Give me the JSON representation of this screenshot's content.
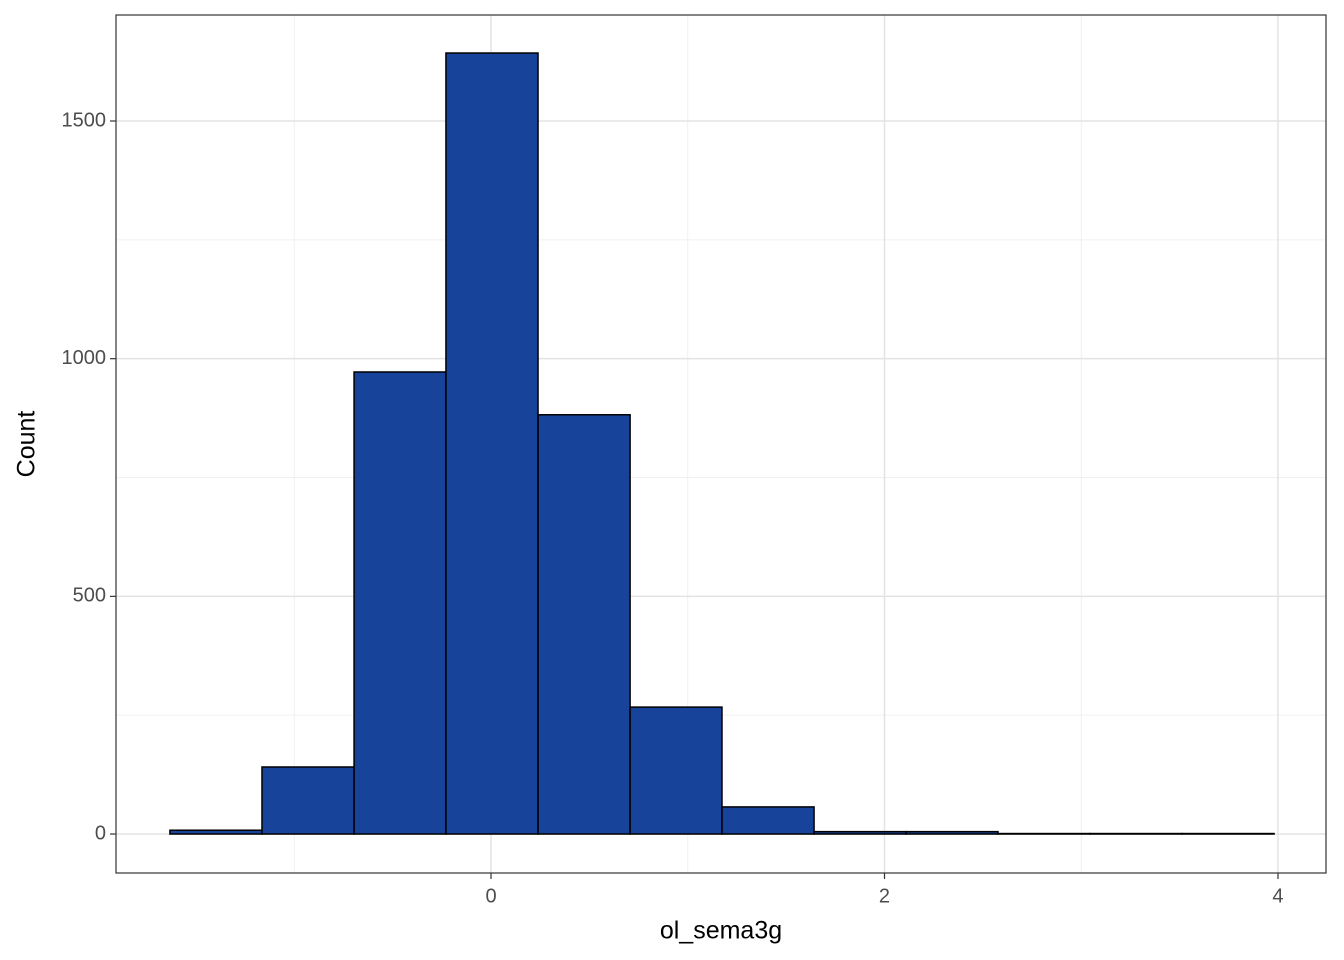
{
  "chart_data": {
    "type": "histogram",
    "x_label": "ol_sema3g",
    "y_label": "Count",
    "bins": [
      -1.632,
      -1.164,
      -0.696,
      -0.229,
      0.239,
      0.707,
      1.174,
      1.642,
      2.11,
      2.577,
      3.045,
      3.512,
      3.98
    ],
    "values": [
      8,
      141,
      972,
      1643,
      882,
      267,
      57,
      5,
      5,
      1,
      1,
      1
    ],
    "color": "#17449a",
    "edge_color": "#000000",
    "xlim": [
      -1.906,
      4.244
    ],
    "ylim": [
      -82,
      1723
    ],
    "xticks": [
      0,
      2,
      4
    ],
    "yticks": [
      0,
      500,
      1000,
      1500
    ],
    "grid": true
  }
}
